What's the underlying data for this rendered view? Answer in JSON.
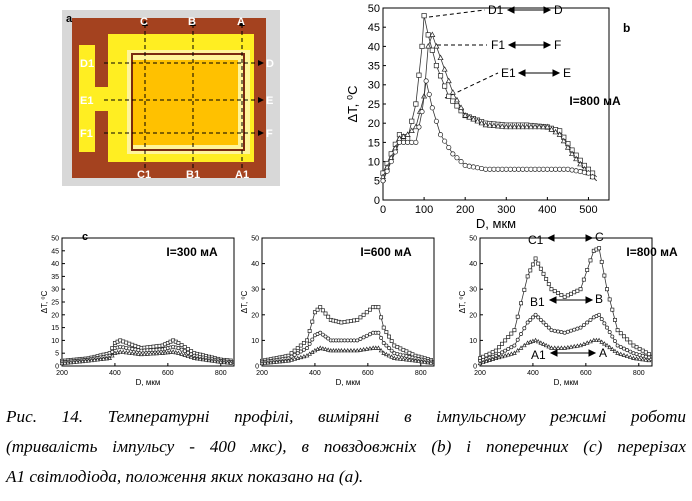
{
  "panel_a": {
    "label": "a",
    "top_labels": [
      "C",
      "B",
      "A"
    ],
    "bottom_labels": [
      "C1",
      "B1",
      "A1"
    ],
    "left_labels": [
      "D1",
      "E1",
      "F1"
    ],
    "right_labels": [
      "D",
      "E",
      "F"
    ],
    "colors": {
      "background": "#d6d6d6",
      "frame": "#a0401f",
      "yellow": "#ffee22",
      "orange": "#ffc000",
      "lightyellow": "#fff7a8"
    }
  },
  "panel_b": {
    "label": "b",
    "current": "I=800 мА",
    "annotations": [
      {
        "text": "D1",
        "text2": "D"
      },
      {
        "text": "F1",
        "text2": "F"
      },
      {
        "text": "E1",
        "text2": "E"
      }
    ]
  },
  "panel_c": {
    "label": "c",
    "charts": [
      {
        "current": "I=300 мА"
      },
      {
        "current": "I=600 мА"
      },
      {
        "current": "I=800 мА",
        "annotations": [
          {
            "left": "C1",
            "right": "C"
          },
          {
            "left": "B1",
            "right": "B"
          },
          {
            "left": "A1",
            "right": "A"
          }
        ]
      }
    ]
  },
  "chart_data": [
    {
      "type": "line",
      "id": "b",
      "xlabel": "D, мкм",
      "ylabel": "ΔT, ⁰C",
      "xlim": [
        0,
        550
      ],
      "ylim": [
        0,
        50
      ],
      "xticks": [
        0,
        100,
        200,
        300,
        400,
        500
      ],
      "yticks": [
        0,
        5,
        10,
        15,
        20,
        25,
        30,
        35,
        40,
        45,
        50
      ],
      "series": [
        {
          "marker": "square",
          "x": [
            0,
            20,
            40,
            60,
            80,
            95,
            100,
            110,
            130,
            160,
            200,
            250,
            300,
            350,
            400,
            430,
            460,
            490,
            520
          ],
          "y": [
            7,
            12,
            17,
            16,
            25,
            40,
            48,
            43,
            35,
            27,
            22,
            20,
            19.5,
            19.5,
            19,
            18,
            13,
            9,
            6
          ]
        },
        {
          "marker": "triangle",
          "x": [
            0,
            20,
            40,
            60,
            80,
            100,
            110,
            120,
            140,
            170,
            200,
            250,
            300,
            350,
            400,
            430,
            460,
            490,
            520
          ],
          "y": [
            6,
            11,
            16,
            17,
            19,
            27,
            40,
            43,
            37,
            28,
            22,
            19.5,
            19,
            19,
            19,
            17,
            12,
            8,
            5
          ]
        },
        {
          "marker": "circle",
          "x": [
            0,
            20,
            40,
            60,
            80,
            95,
            105,
            120,
            140,
            170,
            200,
            250,
            300,
            350,
            400,
            450,
            500,
            520
          ],
          "y": [
            5,
            10,
            15,
            15,
            15,
            23,
            31,
            24,
            17,
            12,
            9,
            8,
            8,
            8,
            8,
            8,
            7,
            5
          ]
        }
      ]
    },
    {
      "type": "line",
      "id": "c1",
      "xlabel": "D, мкм",
      "ylabel": "ΔT, ⁰C",
      "xlim": [
        200,
        850
      ],
      "ylim": [
        0,
        50
      ],
      "xticks": [
        200,
        400,
        600,
        800
      ],
      "yticks": [
        0,
        5,
        10,
        15,
        20,
        25,
        30,
        35,
        40,
        45,
        50
      ],
      "series": [
        {
          "marker": "square",
          "x": [
            200,
            300,
            380,
            400,
            420,
            500,
            580,
            620,
            640,
            700,
            800,
            850
          ],
          "y": [
            2,
            3,
            5,
            9,
            10,
            7,
            8,
            10,
            9,
            5,
            2.5,
            2
          ]
        },
        {
          "marker": "circle",
          "x": [
            200,
            300,
            380,
            400,
            420,
            500,
            580,
            620,
            640,
            700,
            800,
            850
          ],
          "y": [
            1.5,
            2.5,
            4,
            7,
            7.5,
            6,
            6.5,
            7.5,
            7,
            4,
            2,
            1.5
          ]
        },
        {
          "marker": "triangle",
          "x": [
            200,
            300,
            380,
            400,
            420,
            500,
            580,
            620,
            640,
            700,
            800,
            850
          ],
          "y": [
            1,
            2,
            3,
            5,
            5.5,
            4.5,
            5,
            5.5,
            5,
            3,
            1.5,
            1
          ]
        }
      ]
    },
    {
      "type": "line",
      "id": "c2",
      "xlabel": "D, мкм",
      "ylabel": "ΔT, ⁰C",
      "xlim": [
        200,
        850
      ],
      "ylim": [
        0,
        50
      ],
      "xticks": [
        200,
        400,
        600,
        800
      ],
      "yticks": [
        0,
        10,
        20,
        30,
        40,
        50
      ],
      "series": [
        {
          "marker": "square",
          "x": [
            200,
            300,
            370,
            400,
            420,
            460,
            500,
            560,
            620,
            640,
            660,
            700,
            780,
            850
          ],
          "y": [
            2,
            4,
            10,
            21,
            23,
            18,
            17,
            18,
            23,
            23,
            15,
            8,
            4,
            2
          ]
        },
        {
          "marker": "circle",
          "x": [
            200,
            300,
            370,
            400,
            420,
            460,
            500,
            560,
            620,
            640,
            660,
            700,
            780,
            850
          ],
          "y": [
            1.5,
            3,
            7,
            12,
            13,
            10,
            10,
            10,
            13,
            13,
            9,
            5,
            3,
            1.5
          ]
        },
        {
          "marker": "triangle",
          "x": [
            200,
            300,
            370,
            400,
            420,
            460,
            500,
            560,
            620,
            640,
            660,
            700,
            780,
            850
          ],
          "y": [
            1,
            2,
            4,
            6,
            7,
            6,
            6,
            6,
            7,
            7,
            5,
            3,
            2,
            1
          ]
        }
      ]
    },
    {
      "type": "line",
      "id": "c3",
      "xlabel": "D, мкм",
      "ylabel": "ΔT, ⁰C",
      "xlim": [
        200,
        850
      ],
      "ylim": [
        0,
        50
      ],
      "xticks": [
        200,
        400,
        600,
        800
      ],
      "yticks": [
        0,
        10,
        20,
        30,
        40,
        50
      ],
      "series": [
        {
          "marker": "square",
          "x": [
            200,
            260,
            330,
            380,
            410,
            430,
            470,
            520,
            580,
            630,
            650,
            680,
            720,
            780,
            850
          ],
          "y": [
            3,
            6,
            14,
            35,
            42,
            38,
            30,
            27,
            30,
            45,
            46,
            30,
            14,
            8,
            4
          ]
        },
        {
          "marker": "circle",
          "x": [
            200,
            260,
            330,
            380,
            410,
            430,
            470,
            520,
            580,
            630,
            650,
            680,
            720,
            780,
            850
          ],
          "y": [
            2,
            4,
            8,
            17,
            20,
            18,
            14,
            13,
            15,
            19,
            20,
            15,
            8,
            5,
            3
          ]
        },
        {
          "marker": "triangle",
          "x": [
            200,
            260,
            330,
            380,
            410,
            430,
            470,
            520,
            580,
            630,
            650,
            680,
            720,
            780,
            850
          ],
          "y": [
            1,
            3,
            5,
            9,
            10,
            9,
            7,
            7,
            8,
            10,
            10,
            8,
            5,
            3,
            2
          ]
        }
      ]
    }
  ],
  "caption": {
    "line1": "Рис. 14. Температурні профілі, виміряні в імпульсному режимі роботи",
    "line2": "(тривалість імпульсу - 400 мкс), в повздовжніх (b) і поперечних (c) перерізах",
    "line3": "A1 світлодіода, положення яких показано на (a)."
  }
}
